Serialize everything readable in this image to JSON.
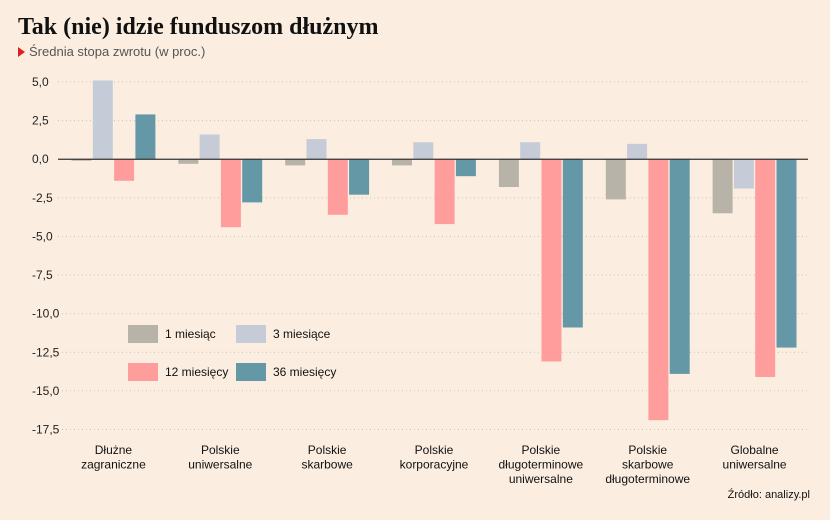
{
  "header": {
    "title": "Tak (nie) idzie funduszom dłużnym",
    "subtitle": "Średnia stopa zwrotu (w proc.)"
  },
  "footer": {
    "source": "Źródło: analizy.pl"
  },
  "colors": {
    "background": "#fbeee0",
    "grid": "#c9c3bd",
    "zero_line": "#333333",
    "accent_marker": "#e02020",
    "series": [
      "#b8b3a9",
      "#c6cbd8",
      "#ff9d9d",
      "#6598a7"
    ]
  },
  "chart_data": {
    "type": "bar",
    "title": "Tak (nie) idzie funduszom dłużnym",
    "subtitle": "Średnia stopa zwrotu (w proc.)",
    "xlabel": "",
    "ylabel": "",
    "ylim": [
      -18.5,
      6.5
    ],
    "yticks": [
      5.0,
      2.5,
      0.0,
      -2.5,
      -5.0,
      -7.5,
      -10.0,
      -12.5,
      -15.0,
      -17.5
    ],
    "ytick_labels": [
      "5,0",
      "2,5",
      "0,0",
      "-2,5",
      "-5,0",
      "-7,5",
      "-10,0",
      "-12,5",
      "-15,0",
      "-17,5"
    ],
    "grid": true,
    "legend_position": "bottom-left, inside plot",
    "categories": [
      [
        "Dłużne",
        "zagraniczne"
      ],
      [
        "Polskie",
        "uniwersalne"
      ],
      [
        "Polskie",
        "skarbowe"
      ],
      [
        "Polskie",
        "korporacyjne"
      ],
      [
        "Polskie",
        "długoterminowe",
        "uniwersalne"
      ],
      [
        "Polskie",
        "skarbowe",
        "długoterminowe"
      ],
      [
        "Globalne",
        "uniwersalne"
      ]
    ],
    "series": [
      {
        "name": "1 miesiąc",
        "values": [
          -0.1,
          -0.3,
          -0.4,
          -0.4,
          -1.8,
          -2.6,
          -3.5
        ]
      },
      {
        "name": "3 miesiące",
        "values": [
          5.1,
          1.6,
          1.3,
          1.1,
          1.1,
          1.0,
          -1.9
        ]
      },
      {
        "name": "12 miesięcy",
        "values": [
          -1.4,
          -4.4,
          -3.6,
          -4.2,
          -13.1,
          -16.9,
          -14.1
        ]
      },
      {
        "name": "36 miesięcy",
        "values": [
          2.9,
          -2.8,
          -2.3,
          -1.1,
          -10.9,
          -13.9,
          -12.2
        ]
      }
    ]
  }
}
